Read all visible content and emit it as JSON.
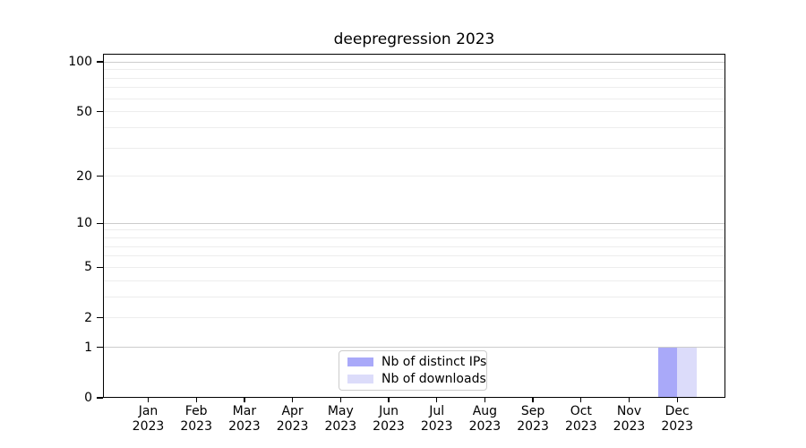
{
  "figure": {
    "title": "deepregression 2023"
  },
  "chart_data": {
    "type": "bar",
    "title": "deepregression 2023",
    "categories": [
      "Jan 2023",
      "Feb 2023",
      "Mar 2023",
      "Apr 2023",
      "May 2023",
      "Jun 2023",
      "Jul 2023",
      "Aug 2023",
      "Sep 2023",
      "Oct 2023",
      "Nov 2023",
      "Dec 2023"
    ],
    "series": [
      {
        "name": "Nb of distinct IPs",
        "color": "#a9a9f9",
        "values": [
          0,
          0,
          0,
          0,
          0,
          0,
          0,
          0,
          0,
          0,
          0,
          1
        ]
      },
      {
        "name": "Nb of downloads",
        "color": "#dcdcfa",
        "values": [
          0,
          0,
          0,
          0,
          0,
          0,
          0,
          0,
          0,
          0,
          0,
          1
        ]
      }
    ],
    "xlabel": "",
    "ylabel": "",
    "yscale": "log1p",
    "ylim": [
      0,
      111
    ],
    "yticks": [
      0,
      1,
      2,
      5,
      10,
      20,
      50,
      100
    ],
    "major_gridlines": [
      1,
      10,
      100
    ],
    "minor_gridlines": [
      2,
      3,
      4,
      5,
      6,
      7,
      8,
      9,
      20,
      30,
      40,
      50,
      60,
      70,
      80,
      90
    ],
    "grid": true,
    "legend_position": "lower center inside"
  },
  "legend": {
    "items": [
      {
        "label": "Nb of distinct IPs",
        "color": "#a9a9f9"
      },
      {
        "label": "Nb of downloads",
        "color": "#dcdcfa"
      }
    ]
  }
}
